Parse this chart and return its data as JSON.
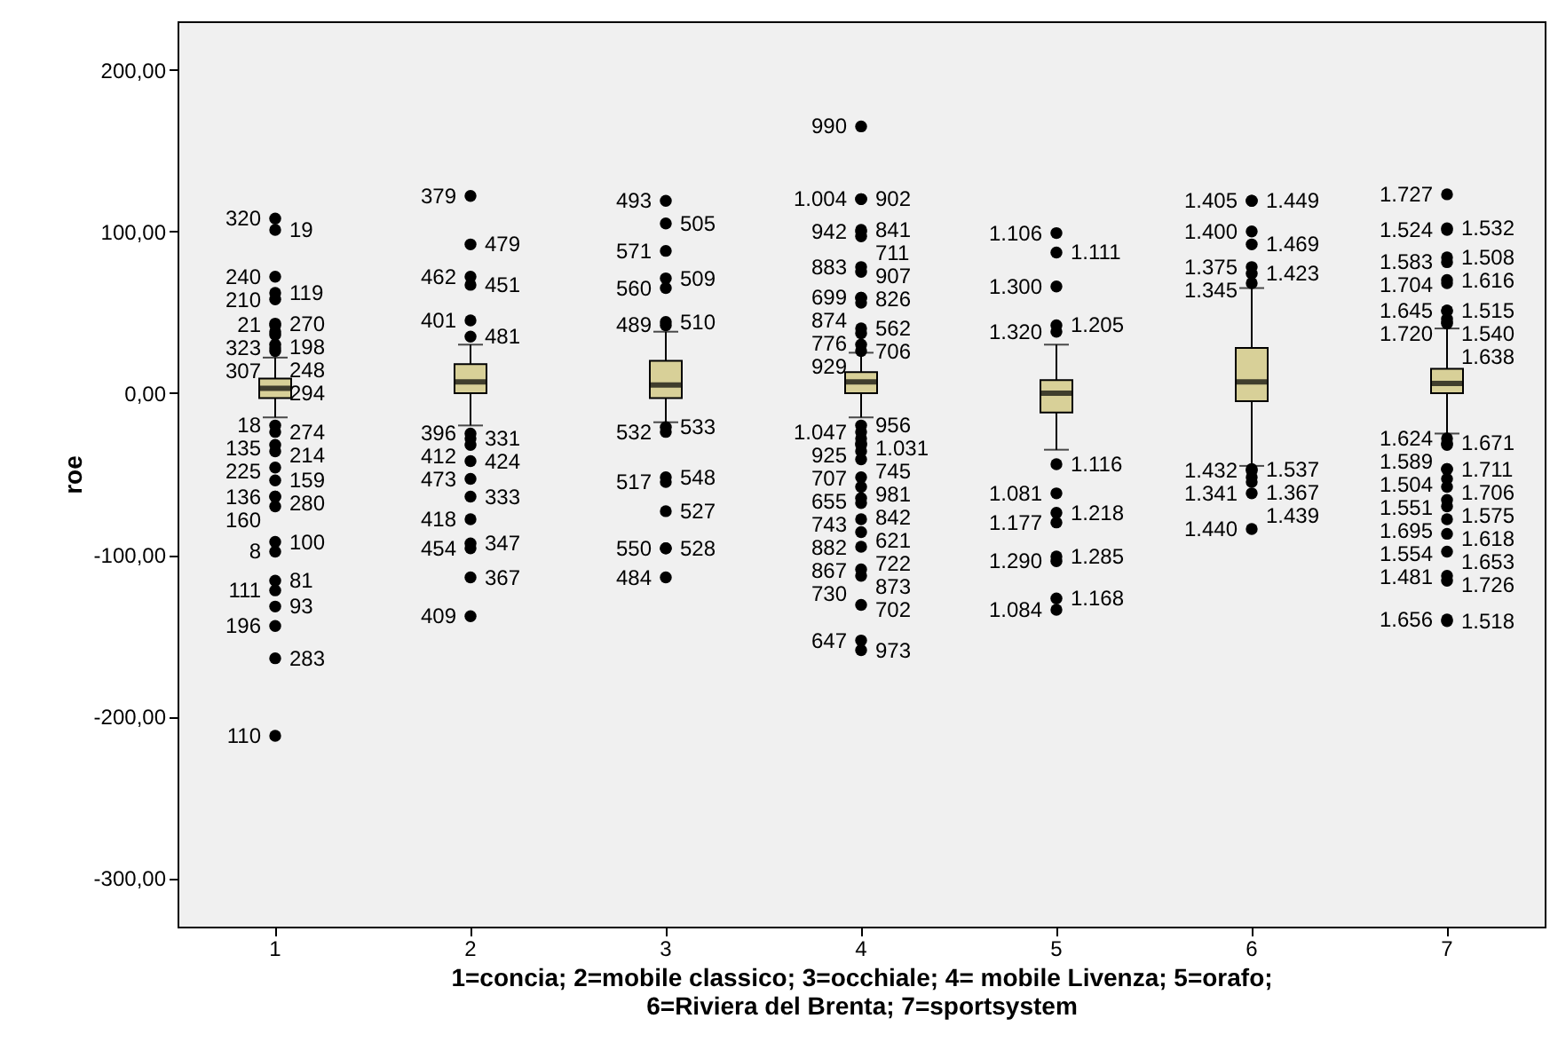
{
  "chart_data": {
    "type": "box",
    "xlabel": "1=concia; 2=mobile classico; 3=occhiale; 4= mobile Livenza; 5=orafo;\n6=Riviera del Brenta; 7=sportsystem",
    "ylabel": "roe",
    "categories": [
      "1",
      "2",
      "3",
      "4",
      "5",
      "6",
      "7"
    ],
    "color": "#d8d098",
    "ylim": [
      -330,
      230
    ],
    "yticks": [
      {
        "value": 200,
        "label": "200,00"
      },
      {
        "value": 100,
        "label": "100,00"
      },
      {
        "value": 0,
        "label": "0,00"
      },
      {
        "value": -100,
        "label": "-100,00"
      },
      {
        "value": -200,
        "label": "-200,00"
      },
      {
        "value": -300,
        "label": "-300,00"
      }
    ],
    "grid": false,
    "marker": "circle",
    "boxes": [
      {
        "low": -15,
        "q1": -3,
        "median": 3,
        "q3": 9,
        "high": 22
      },
      {
        "low": -20,
        "q1": 0,
        "median": 7,
        "q3": 18,
        "high": 30
      },
      {
        "low": -18,
        "q1": -3,
        "median": 5,
        "q3": 20,
        "high": 38
      },
      {
        "low": -15,
        "q1": 0,
        "median": 7,
        "q3": 13,
        "high": 25
      },
      {
        "low": -35,
        "q1": -12,
        "median": 0,
        "q3": 8,
        "high": 30
      },
      {
        "low": -45,
        "q1": -5,
        "median": 7,
        "q3": 28,
        "high": 65
      },
      {
        "low": -25,
        "q1": 0,
        "median": 6,
        "q3": 15,
        "high": 40
      }
    ],
    "series": [
      {
        "type": "scatter",
        "color": "#000000",
        "x": [
          "1",
          "1",
          "1",
          "1",
          "1",
          "1",
          "1",
          "1",
          "1",
          "1",
          "1",
          "1",
          "1",
          "1",
          "1",
          "1",
          "1",
          "1",
          "1",
          "1",
          "1",
          "1",
          "1",
          "1",
          "1",
          "1",
          "1",
          "1",
          "1",
          "2",
          "2",
          "2",
          "2",
          "2",
          "2",
          "2",
          "2",
          "2",
          "2",
          "2",
          "2",
          "2",
          "2",
          "2",
          "2",
          "2",
          "3",
          "3",
          "3",
          "3",
          "3",
          "3",
          "3",
          "3",
          "3",
          "3",
          "3",
          "3",
          "3",
          "3",
          "3",
          "4",
          "4",
          "4",
          "4",
          "4",
          "4",
          "4",
          "4",
          "4",
          "4",
          "4",
          "4",
          "4",
          "4",
          "4",
          "4",
          "4",
          "4",
          "4",
          "4",
          "4",
          "4",
          "4",
          "4",
          "4",
          "4",
          "4",
          "4",
          "4",
          "4",
          "4",
          "4",
          "4",
          "4",
          "5",
          "5",
          "5",
          "5",
          "5",
          "5",
          "5",
          "5",
          "5",
          "5",
          "5",
          "5",
          "5",
          "6",
          "6",
          "6",
          "6",
          "6",
          "6",
          "6",
          "6",
          "6",
          "6",
          "6",
          "6",
          "6",
          "7",
          "7",
          "7",
          "7",
          "7",
          "7",
          "7",
          "7",
          "7",
          "7",
          "7",
          "7",
          "7",
          "7",
          "7",
          "7",
          "7",
          "7",
          "7",
          "7",
          "7",
          "7",
          "7",
          "7",
          "7",
          "7",
          "7",
          "7"
        ],
        "values": [
          101,
          108,
          62,
          72,
          38,
          58,
          43,
          42,
          30,
          36,
          26,
          28,
          -20,
          -24,
          -36,
          -32,
          -46,
          -54,
          -64,
          -64,
          -70,
          -92,
          -98,
          -116,
          -122,
          -132,
          -144,
          -164,
          -212,
          67,
          122,
          35,
          92,
          -28,
          72,
          -42,
          45,
          -64,
          -25,
          -96,
          -32,
          -93,
          -53,
          -78,
          -114,
          -138,
          105,
          119,
          71,
          88,
          42,
          65,
          -24,
          44,
          -55,
          -21,
          -73,
          -52,
          -96,
          -96,
          -114,
          120,
          165,
          100,
          120,
          75,
          97,
          56,
          101,
          59,
          78,
          37,
          59,
          -28,
          40,
          -20,
          30,
          -31,
          26,
          -41,
          -24,
          -68,
          -32,
          -58,
          -36,
          -78,
          -52,
          -95,
          -65,
          -113,
          -86,
          -159,
          -109,
          -131,
          -153,
          87,
          99,
          42,
          66,
          -44,
          38,
          -62,
          -74,
          -80,
          -104,
          -101,
          -127,
          -134,
          119,
          119,
          92,
          100,
          74,
          68,
          -48,
          78,
          -55,
          -52,
          -47,
          -62,
          -84,
          102,
          123,
          84,
          101,
          68,
          81,
          51,
          70,
          46,
          51,
          -28,
          44,
          -31,
          43,
          -47,
          -32,
          -66,
          -47,
          -87,
          -53,
          -113,
          -58,
          -141,
          -70,
          -78,
          -98,
          -116,
          -140
        ]
      }
    ],
    "annotations": [
      {
        "text": "19",
        "x": "1",
        "y": 101
      },
      {
        "text": "320",
        "x": "1",
        "y": 108
      },
      {
        "text": "119",
        "x": "1",
        "y": 62
      },
      {
        "text": "240",
        "x": "1",
        "y": 72
      },
      {
        "text": "198",
        "x": "1",
        "y": 38
      },
      {
        "text": "210",
        "x": "1",
        "y": 58
      },
      {
        "text": "270",
        "x": "1",
        "y": 43
      },
      {
        "text": "21",
        "x": "1",
        "y": 42
      },
      {
        "text": "248",
        "x": "1",
        "y": 30
      },
      {
        "text": "323",
        "x": "1",
        "y": 36
      },
      {
        "text": "294",
        "x": "1",
        "y": 26
      },
      {
        "text": "307",
        "x": "1",
        "y": 28
      },
      {
        "text": "18",
        "x": "1",
        "y": -20
      },
      {
        "text": "274",
        "x": "1",
        "y": -24
      },
      {
        "text": "214",
        "x": "1",
        "y": -36
      },
      {
        "text": "135",
        "x": "1",
        "y": -32
      },
      {
        "text": "225",
        "x": "1",
        "y": -46
      },
      {
        "text": "159",
        "x": "1",
        "y": -54
      },
      {
        "text": "136",
        "x": "1",
        "y": -64
      },
      {
        "text": "280",
        "x": "1",
        "y": -64
      },
      {
        "text": "160",
        "x": "1",
        "y": -70
      },
      {
        "text": "100",
        "x": "1",
        "y": -92
      },
      {
        "text": "8",
        "x": "1",
        "y": -98
      },
      {
        "text": "81",
        "x": "1",
        "y": -116
      },
      {
        "text": "111",
        "x": "1",
        "y": -122
      },
      {
        "text": "93",
        "x": "1",
        "y": -132
      },
      {
        "text": "196",
        "x": "1",
        "y": -144
      },
      {
        "text": "283",
        "x": "1",
        "y": -164
      },
      {
        "text": "110",
        "x": "1",
        "y": -212
      },
      {
        "text": "451",
        "x": "2",
        "y": 67
      },
      {
        "text": "379",
        "x": "2",
        "y": 122
      },
      {
        "text": "481",
        "x": "2",
        "y": 35
      },
      {
        "text": "479",
        "x": "2",
        "y": 92
      },
      {
        "text": "331",
        "x": "2",
        "y": -28
      },
      {
        "text": "462",
        "x": "2",
        "y": 72
      },
      {
        "text": "424",
        "x": "2",
        "y": -42
      },
      {
        "text": "401",
        "x": "2",
        "y": 45
      },
      {
        "text": "333",
        "x": "2",
        "y": -64
      },
      {
        "text": "396",
        "x": "2",
        "y": -25
      },
      {
        "text": "454",
        "x": "2",
        "y": -96
      },
      {
        "text": "412",
        "x": "2",
        "y": -32
      },
      {
        "text": "347",
        "x": "2",
        "y": -93
      },
      {
        "text": "473",
        "x": "2",
        "y": -53
      },
      {
        "text": "418",
        "x": "2",
        "y": -78
      },
      {
        "text": "367",
        "x": "2",
        "y": -114
      },
      {
        "text": "409",
        "x": "2",
        "y": -138
      },
      {
        "text": "505",
        "x": "3",
        "y": 105
      },
      {
        "text": "493",
        "x": "3",
        "y": 119
      },
      {
        "text": "509",
        "x": "3",
        "y": 71
      },
      {
        "text": "571",
        "x": "3",
        "y": 88
      },
      {
        "text": "489",
        "x": "3",
        "y": 42
      },
      {
        "text": "560",
        "x": "3",
        "y": 65
      },
      {
        "text": "532",
        "x": "3",
        "y": -24
      },
      {
        "text": "510",
        "x": "3",
        "y": 44
      },
      {
        "text": "517",
        "x": "3",
        "y": -55
      },
      {
        "text": "533",
        "x": "3",
        "y": -21
      },
      {
        "text": "527",
        "x": "3",
        "y": -73
      },
      {
        "text": "548",
        "x": "3",
        "y": -52
      },
      {
        "text": "550",
        "x": "3",
        "y": -96
      },
      {
        "text": "528",
        "x": "3",
        "y": -96
      },
      {
        "text": "484",
        "x": "3",
        "y": -114
      },
      {
        "text": "902",
        "x": "4",
        "y": 120
      },
      {
        "text": "990",
        "x": "4",
        "y": 165
      },
      {
        "text": "942",
        "x": "4",
        "y": 100
      },
      {
        "text": "1.004",
        "x": "4",
        "y": 120
      },
      {
        "text": "907",
        "x": "4",
        "y": 75
      },
      {
        "text": "711",
        "x": "4",
        "y": 97
      },
      {
        "text": "874",
        "x": "4",
        "y": 56
      },
      {
        "text": "841",
        "x": "4",
        "y": 101
      },
      {
        "text": "699",
        "x": "4",
        "y": 59
      },
      {
        "text": "883",
        "x": "4",
        "y": 78
      },
      {
        "text": "776",
        "x": "4",
        "y": 37
      },
      {
        "text": "826",
        "x": "4",
        "y": 59
      },
      {
        "text": "1.031",
        "x": "4",
        "y": -28
      },
      {
        "text": "562",
        "x": "4",
        "y": 40
      },
      {
        "text": "956",
        "x": "4",
        "y": -20
      },
      {
        "text": "706",
        "x": "4",
        "y": 30
      },
      {
        "text": "925",
        "x": "4",
        "y": -31
      },
      {
        "text": "929",
        "x": "4",
        "y": 26
      },
      {
        "text": "981",
        "x": "4",
        "y": -41
      },
      {
        "text": "1.047",
        "x": "4",
        "y": -24
      },
      {
        "text": "621",
        "x": "4",
        "y": -68
      },
      {
        "text": "745",
        "x": "4",
        "y": -32
      },
      {
        "text": "842",
        "x": "4",
        "y": -58
      },
      {
        "text": "707",
        "x": "4",
        "y": -36
      },
      {
        "text": "882",
        "x": "4",
        "y": -78
      },
      {
        "text": "655",
        "x": "4",
        "y": -52
      },
      {
        "text": "867",
        "x": "4",
        "y": -95
      },
      {
        "text": "743",
        "x": "4",
        "y": -65
      },
      {
        "text": "730",
        "x": "4",
        "y": -113
      },
      {
        "text": "722",
        "x": "4",
        "y": -86
      },
      {
        "text": "973",
        "x": "4",
        "y": -159
      },
      {
        "text": "873",
        "x": "4",
        "y": -109
      },
      {
        "text": "702",
        "x": "4",
        "y": -131
      },
      {
        "text": "647",
        "x": "4",
        "y": -153
      },
      {
        "text": "1.111",
        "x": "5",
        "y": 87
      },
      {
        "text": "1.106",
        "x": "5",
        "y": 99
      },
      {
        "text": "1.205",
        "x": "5",
        "y": 42
      },
      {
        "text": "1.300",
        "x": "5",
        "y": 66
      },
      {
        "text": "1.116",
        "x": "5",
        "y": -44
      },
      {
        "text": "1.320",
        "x": "5",
        "y": 38
      },
      {
        "text": "1.081",
        "x": "5",
        "y": -62
      },
      {
        "text": "1.218",
        "x": "5",
        "y": -74
      },
      {
        "text": "1.177",
        "x": "5",
        "y": -80
      },
      {
        "text": "1.290",
        "x": "5",
        "y": -104
      },
      {
        "text": "1.285",
        "x": "5",
        "y": -101
      },
      {
        "text": "1.168",
        "x": "5",
        "y": -127
      },
      {
        "text": "1.084",
        "x": "5",
        "y": -134
      },
      {
        "text": "1.405",
        "x": "6",
        "y": 119
      },
      {
        "text": "1.449",
        "x": "6",
        "y": 119
      },
      {
        "text": "1.469",
        "x": "6",
        "y": 92
      },
      {
        "text": "1.400",
        "x": "6",
        "y": 100
      },
      {
        "text": "1.423",
        "x": "6",
        "y": 74
      },
      {
        "text": "1.345",
        "x": "6",
        "y": 68
      },
      {
        "text": "1.432",
        "x": "6",
        "y": -48
      },
      {
        "text": "1.375",
        "x": "6",
        "y": 78
      },
      {
        "text": "1.341",
        "x": "6",
        "y": -55
      },
      {
        "text": "1.367",
        "x": "6",
        "y": -52
      },
      {
        "text": "1.537",
        "x": "6",
        "y": -47
      },
      {
        "text": "1.439",
        "x": "6",
        "y": -62
      },
      {
        "text": "1.440",
        "x": "6",
        "y": -84
      },
      {
        "text": "1.532",
        "x": "7",
        "y": 102
      },
      {
        "text": "1.727",
        "x": "7",
        "y": 123
      },
      {
        "text": "1.508",
        "x": "7",
        "y": 84
      },
      {
        "text": "1.524",
        "x": "7",
        "y": 101
      },
      {
        "text": "1.704",
        "x": "7",
        "y": 68
      },
      {
        "text": "1.583",
        "x": "7",
        "y": 81
      },
      {
        "text": "1.515",
        "x": "7",
        "y": 51
      },
      {
        "text": "1.616",
        "x": "7",
        "y": 70
      },
      {
        "text": "1.540",
        "x": "7",
        "y": 46
      },
      {
        "text": "1.645",
        "x": "7",
        "y": 51
      },
      {
        "text": "1.624",
        "x": "7",
        "y": -28
      },
      {
        "text": "1.720",
        "x": "7",
        "y": 44
      },
      {
        "text": "1.671",
        "x": "7",
        "y": -31
      },
      {
        "text": "1.638",
        "x": "7",
        "y": 43
      },
      {
        "text": "1.711",
        "x": "7",
        "y": -47
      },
      {
        "text": "1.589",
        "x": "7",
        "y": -32
      },
      {
        "text": "1.575",
        "x": "7",
        "y": -66
      },
      {
        "text": "1.504",
        "x": "7",
        "y": -47
      },
      {
        "text": "1.554",
        "x": "7",
        "y": -87
      },
      {
        "text": "1.706",
        "x": "7",
        "y": -53
      },
      {
        "text": "1.481",
        "x": "7",
        "y": -113
      },
      {
        "text": "1.551",
        "x": "7",
        "y": -58
      },
      {
        "text": "1.518",
        "x": "7",
        "y": -141
      },
      {
        "text": "1.695",
        "x": "7",
        "y": -70
      },
      {
        "text": "1.618",
        "x": "7",
        "y": -78
      },
      {
        "text": "1.653",
        "x": "7",
        "y": -98
      },
      {
        "text": "1.726",
        "x": "7",
        "y": -116
      },
      {
        "text": "1.656",
        "x": "7",
        "y": -140
      }
    ]
  }
}
